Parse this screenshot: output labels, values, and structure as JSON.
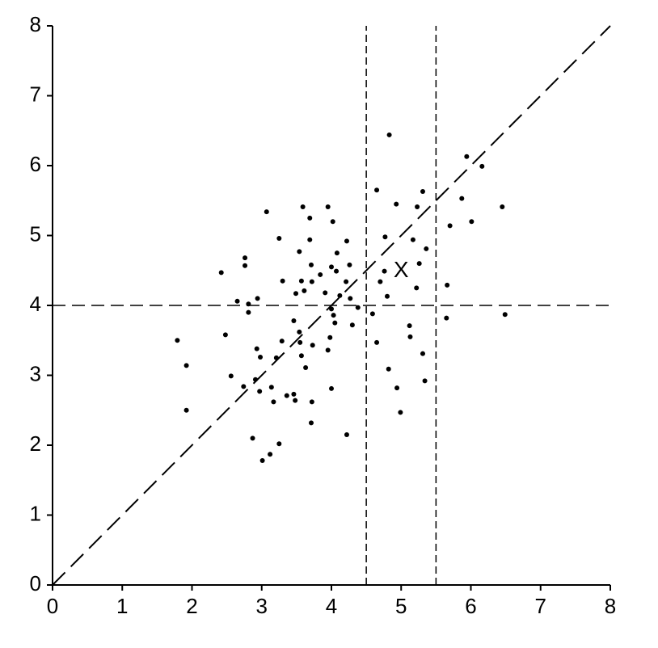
{
  "chart_data": {
    "type": "scatter",
    "x": [
      1.79,
      1.92,
      1.92,
      2.42,
      2.48,
      2.56,
      2.65,
      2.76,
      2.76,
      2.74,
      2.81,
      2.81,
      2.94,
      2.93,
      2.98,
      2.91,
      2.97,
      2.87,
      3.01,
      3.07,
      3.12,
      3.14,
      3.17,
      3.21,
      3.25,
      3.25,
      3.3,
      3.29,
      3.36,
      3.46,
      3.46,
      3.48,
      3.49,
      3.54,
      3.54,
      3.55,
      3.57,
      3.59,
      3.61,
      3.57,
      3.63,
      3.69,
      3.69,
      3.71,
      3.72,
      3.73,
      3.72,
      3.71,
      3.84,
      3.91,
      3.95,
      3.95,
      3.98,
      4.0,
      4.0,
      4.0,
      4.02,
      4.03,
      4.05,
      4.07,
      4.08,
      4.12,
      4.21,
      4.22,
      4.22,
      4.26,
      4.27,
      4.3,
      4.38,
      4.59,
      4.65,
      4.65,
      4.7,
      4.76,
      4.77,
      4.8,
      4.83,
      4.82,
      4.93,
      4.94,
      4.99,
      5.12,
      5.13,
      5.17,
      5.22,
      5.23,
      5.26,
      5.31,
      5.31,
      5.36,
      5.34,
      5.66,
      5.65,
      5.7,
      5.87,
      5.94,
      6.01,
      6.16,
      6.45,
      6.49
    ],
    "values": [
      3.5,
      3.14,
      2.5,
      4.47,
      3.58,
      2.99,
      4.06,
      4.68,
      4.57,
      2.84,
      4.02,
      3.9,
      4.1,
      3.38,
      3.26,
      2.94,
      2.77,
      2.1,
      1.78,
      5.34,
      1.87,
      2.83,
      2.62,
      3.25,
      4.96,
      2.02,
      4.35,
      3.49,
      2.71,
      3.78,
      2.73,
      2.64,
      4.17,
      4.77,
      3.62,
      3.47,
      4.35,
      5.41,
      4.21,
      3.28,
      3.11,
      5.25,
      4.94,
      4.58,
      4.34,
      3.43,
      2.62,
      2.32,
      4.44,
      4.18,
      5.41,
      3.36,
      3.54,
      4.55,
      3.95,
      2.81,
      5.2,
      3.86,
      3.75,
      4.49,
      4.75,
      4.14,
      4.34,
      4.92,
      2.15,
      4.58,
      4.1,
      3.72,
      3.97,
      3.88,
      5.65,
      3.47,
      4.34,
      4.49,
      4.98,
      4.13,
      6.44,
      3.09,
      5.45,
      2.82,
      2.47,
      3.71,
      3.55,
      4.94,
      4.25,
      5.41,
      4.6,
      5.63,
      3.31,
      4.81,
      2.92,
      4.29,
      3.82,
      5.14,
      5.53,
      6.13,
      5.2,
      5.99,
      5.41,
      3.87
    ],
    "color": "#000000",
    "xlim": [
      0,
      8
    ],
    "ylim": [
      0,
      8
    ],
    "xticks": [
      0,
      1,
      2,
      3,
      4,
      5,
      6,
      7,
      8
    ],
    "yticks": [
      0,
      1,
      2,
      3,
      4,
      5,
      6,
      7,
      8
    ],
    "reference_lines": [
      {
        "x": [
          0,
          8
        ],
        "y": [
          0,
          8
        ]
      },
      {
        "x": [
          0,
          8
        ],
        "y": [
          4,
          4
        ]
      },
      {
        "x": [
          4.5,
          4.5
        ],
        "y": [
          0,
          8
        ]
      },
      {
        "x": [
          5.5,
          5.5
        ],
        "y": [
          0,
          8
        ]
      }
    ],
    "annotations": [
      {
        "text": "X",
        "x": 5,
        "y": 4.5
      }
    ]
  }
}
